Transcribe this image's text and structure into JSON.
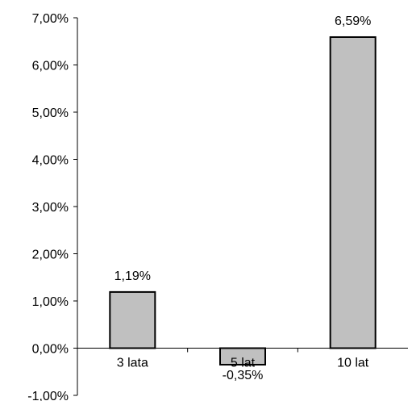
{
  "chart_data": {
    "type": "bar",
    "title": "",
    "xlabel": "",
    "ylabel": "",
    "categories": [
      "3 lata",
      "5 lat",
      "10 lat"
    ],
    "values": [
      1.19,
      -0.35,
      6.59
    ],
    "data_labels": [
      "1,19%",
      "-0,35%",
      "6,59%"
    ],
    "ylim": [
      -1,
      7
    ],
    "yticks": [
      -1,
      0,
      1,
      2,
      3,
      4,
      5,
      6,
      7
    ],
    "ytick_labels": [
      "-1,00%",
      "0,00%",
      "1,00%",
      "2,00%",
      "3,00%",
      "4,00%",
      "5,00%",
      "6,00%",
      "7,00%"
    ],
    "grid": false,
    "legend": "none",
    "colors": {
      "bar_fill": "#c0c0c0",
      "bar_stroke": "#000000",
      "axis": "#000000"
    }
  }
}
